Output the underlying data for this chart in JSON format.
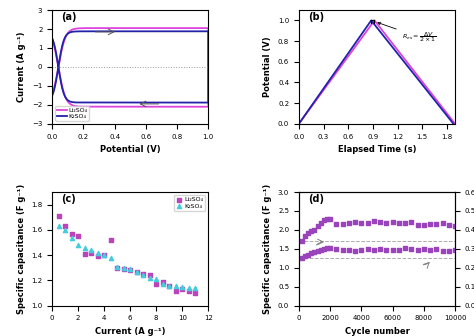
{
  "panel_a": {
    "title": "(a)",
    "xlabel": "Potential (V)",
    "ylabel": "Current (A g⁻¹)",
    "xlim": [
      0.0,
      1.0
    ],
    "ylim": [
      -3,
      3
    ],
    "yticks": [
      -3,
      -2,
      -1,
      0,
      1,
      2,
      3
    ],
    "xticks": [
      0.0,
      0.2,
      0.4,
      0.6,
      0.8,
      1.0
    ],
    "color_li": "#dd44dd",
    "color_k": "#2222aa",
    "legend": [
      "Li₂SO₄",
      "K₂SO₄"
    ]
  },
  "panel_b": {
    "title": "(b)",
    "xlabel": "Elapsed Time (s)",
    "ylabel": "Potential (V)",
    "xlim": [
      0.0,
      1.9
    ],
    "ylim": [
      0.0,
      1.1
    ],
    "yticks": [
      0.0,
      0.2,
      0.4,
      0.6,
      0.8,
      1.0
    ],
    "xticks": [
      0.0,
      0.3,
      0.6,
      0.9,
      1.2,
      1.5,
      1.8
    ],
    "color_li": "#dd44dd",
    "color_k": "#2222aa"
  },
  "panel_c": {
    "title": "(c)",
    "xlabel": "Current (A g⁻¹)",
    "ylabel": "Specific capacitance (F g⁻¹)",
    "xlim": [
      0,
      12
    ],
    "ylim": [
      1.0,
      1.9
    ],
    "xticks": [
      0,
      2,
      4,
      6,
      8,
      10,
      12
    ],
    "yticks": [
      1.0,
      1.2,
      1.4,
      1.6,
      1.8
    ],
    "color_li": "#bb44bb",
    "color_k": "#44ccdd",
    "legend": [
      "Li₂SO₄",
      "K₂SO₄"
    ],
    "li_x": [
      0.5,
      1.0,
      1.5,
      2.0,
      2.5,
      3.0,
      3.5,
      4.0,
      4.5,
      5.0,
      5.5,
      6.0,
      6.5,
      7.0,
      7.5,
      8.0,
      8.5,
      9.0,
      9.5,
      10.0,
      10.5,
      11.0
    ],
    "li_y": [
      1.71,
      1.63,
      1.57,
      1.55,
      1.41,
      1.42,
      1.39,
      1.4,
      1.52,
      1.3,
      1.29,
      1.28,
      1.27,
      1.25,
      1.24,
      1.17,
      1.19,
      1.16,
      1.12,
      1.13,
      1.12,
      1.1
    ],
    "k_x": [
      0.5,
      1.0,
      1.5,
      2.0,
      2.5,
      3.0,
      3.5,
      4.0,
      4.5,
      5.0,
      5.5,
      6.0,
      6.5,
      7.0,
      7.5,
      8.0,
      8.5,
      9.0,
      9.5,
      10.0,
      10.5,
      11.0
    ],
    "k_y": [
      1.63,
      1.6,
      1.54,
      1.48,
      1.46,
      1.44,
      1.42,
      1.4,
      1.38,
      1.31,
      1.3,
      1.29,
      1.27,
      1.24,
      1.22,
      1.21,
      1.17,
      1.16,
      1.16,
      1.15,
      1.14,
      1.14
    ]
  },
  "panel_d": {
    "title": "(d)",
    "xlabel": "Cycle number",
    "ylabel": "Specific capacitance (F g⁻¹)",
    "ylabel_right": "Specific Energy (Wh kg⁻¹)",
    "xlim": [
      0,
      10000
    ],
    "ylim_left": [
      0.0,
      3.0
    ],
    "ylim_right": [
      0.0,
      0.6
    ],
    "xticks": [
      0,
      2000,
      4000,
      6000,
      8000,
      10000
    ],
    "yticks_left": [
      0.0,
      0.5,
      1.0,
      1.5,
      2.0,
      2.5,
      3.0
    ],
    "yticks_right": [
      0.0,
      0.1,
      0.2,
      0.3,
      0.4,
      0.5,
      0.6
    ],
    "color_scatter": "#9944bb",
    "hline1_y": 1.7,
    "hline2_y": 1.25,
    "hline_color": "#888888"
  }
}
